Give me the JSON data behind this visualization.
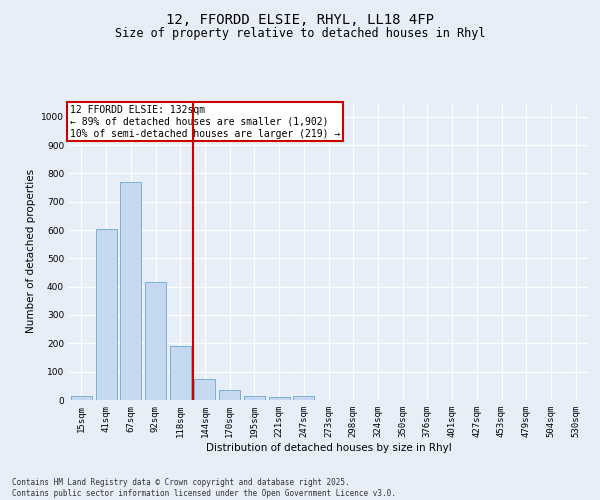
{
  "title_line1": "12, FFORDD ELSIE, RHYL, LL18 4FP",
  "title_line2": "Size of property relative to detached houses in Rhyl",
  "xlabel": "Distribution of detached houses by size in Rhyl",
  "ylabel": "Number of detached properties",
  "categories": [
    "15sqm",
    "41sqm",
    "67sqm",
    "92sqm",
    "118sqm",
    "144sqm",
    "170sqm",
    "195sqm",
    "221sqm",
    "247sqm",
    "273sqm",
    "298sqm",
    "324sqm",
    "350sqm",
    "376sqm",
    "401sqm",
    "427sqm",
    "453sqm",
    "479sqm",
    "504sqm",
    "530sqm"
  ],
  "values": [
    15,
    605,
    770,
    415,
    190,
    75,
    35,
    15,
    10,
    13,
    0,
    0,
    0,
    0,
    0,
    0,
    0,
    0,
    0,
    0,
    0
  ],
  "bar_color": "#c5d8f0",
  "bar_edge_color": "#7aafd4",
  "vline_color": "#cc0000",
  "vline_x": 4.5,
  "ylim": [
    0,
    1050
  ],
  "yticks": [
    0,
    100,
    200,
    300,
    400,
    500,
    600,
    700,
    800,
    900,
    1000
  ],
  "annotation_text": "12 FFORDD ELSIE: 132sqm\n← 89% of detached houses are smaller (1,902)\n10% of semi-detached houses are larger (219) →",
  "annotation_box_color": "#cc0000",
  "footer_text": "Contains HM Land Registry data © Crown copyright and database right 2025.\nContains public sector information licensed under the Open Government Licence v3.0.",
  "background_color": "#e8eef8",
  "plot_bg_color": "#e8eef8",
  "title1_fontsize": 10,
  "title2_fontsize": 8.5,
  "tick_fontsize": 6.5,
  "axis_label_fontsize": 7.5,
  "annot_fontsize": 7
}
